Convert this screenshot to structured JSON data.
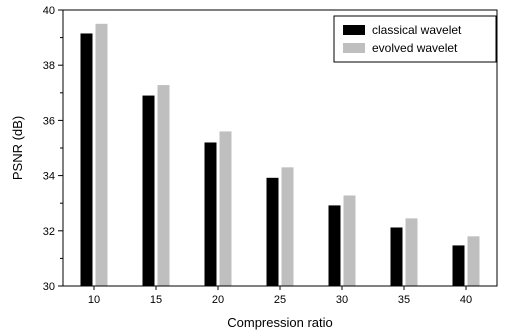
{
  "chart_data": {
    "type": "bar",
    "title": "",
    "xlabel": "Compression ratio",
    "ylabel": "PSNR (dB)",
    "categories": [
      "10",
      "15",
      "20",
      "25",
      "30",
      "35",
      "40"
    ],
    "series": [
      {
        "name": "classical wavelet",
        "color": "#000000",
        "values": [
          39.15,
          36.9,
          35.2,
          33.92,
          32.92,
          32.12,
          31.47
        ]
      },
      {
        "name": "evolved wavelet",
        "color": "#bfbfbf",
        "values": [
          39.5,
          37.28,
          35.6,
          34.3,
          33.28,
          32.45,
          31.8
        ]
      }
    ],
    "ylim": [
      30,
      40
    ],
    "yticks": [
      "30",
      "32",
      "34",
      "36",
      "38",
      "40"
    ],
    "grid": false,
    "legend_position": "top-right"
  }
}
